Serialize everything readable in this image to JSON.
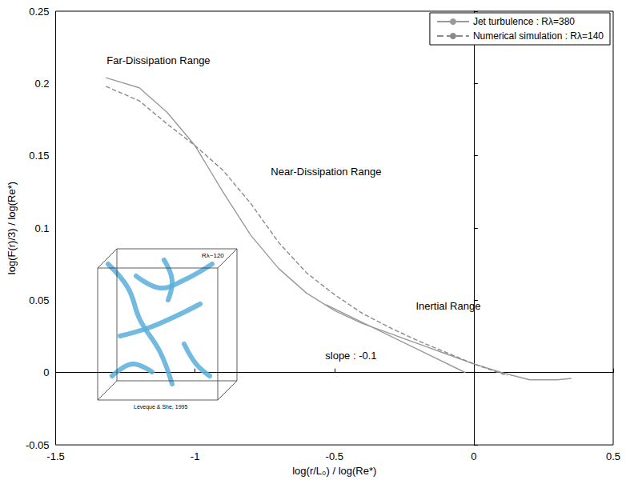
{
  "chart_data": {
    "type": "line",
    "xlabel": "log(r/L₀) / log(Re*)",
    "ylabel": "log(F(r)/3) / log(Re*)",
    "xlim": [
      -1.5,
      0.5
    ],
    "xticks": [
      -1.5,
      -1,
      -0.5,
      0,
      0.5
    ],
    "ylim": [
      -0.05,
      0.25
    ],
    "yticks": [
      -0.05,
      0,
      0.05,
      0.1,
      0.15,
      0.2,
      0.25
    ],
    "grid": false,
    "legend": "upper right",
    "series": [
      {
        "name": "Jet turbulence : Rλ=380",
        "color": "#9a9a9a",
        "line_style": "solid",
        "x": [
          -1.32,
          -1.2,
          -1.1,
          -1.0,
          -0.9,
          -0.8,
          -0.7,
          -0.6,
          -0.5,
          -0.4,
          -0.3,
          -0.2,
          -0.1,
          0,
          0.1,
          0.2,
          0.3,
          0.35
        ],
        "values": [
          0.204,
          0.197,
          0.18,
          0.157,
          0.125,
          0.095,
          0.072,
          0.055,
          0.043,
          0.034,
          0.027,
          0.02,
          0.013,
          0.006,
          0.0,
          -0.005,
          -0.005,
          -0.004
        ]
      },
      {
        "name": "Numerical simulation : Rλ=140",
        "color": "#8a8a8a",
        "line_style": "dashed",
        "x": [
          -1.32,
          -1.2,
          -1.1,
          -1.0,
          -0.9,
          -0.8,
          -0.7,
          -0.6,
          -0.5,
          -0.4,
          -0.3,
          -0.2,
          -0.1,
          0,
          0.12
        ],
        "values": [
          0.198,
          0.188,
          0.172,
          0.157,
          0.14,
          0.117,
          0.09,
          0.069,
          0.054,
          0.041,
          0.031,
          0.022,
          0.014,
          0.006,
          -0.002
        ]
      }
    ],
    "reference_line": {
      "x": [
        -0.53,
        -0.03
      ],
      "values": [
        0.047,
        0.0
      ],
      "color": "#9a9a9a",
      "line_style": "solid"
    },
    "annotations": [
      {
        "text": "Far-Dissipation Range",
        "x": -1.317,
        "y": 0.216
      },
      {
        "text": "Near-Dissipation Range",
        "x": -0.728,
        "y": 0.139
      },
      {
        "text": "Inertial Range",
        "x": -0.208,
        "y": 0.046
      },
      {
        "text": "slope : -0.1",
        "x": -0.533,
        "y": 0.012
      }
    ],
    "inset": {
      "texts": [
        "Rλ~120",
        "Leveque & She, 1995"
      ]
    }
  }
}
